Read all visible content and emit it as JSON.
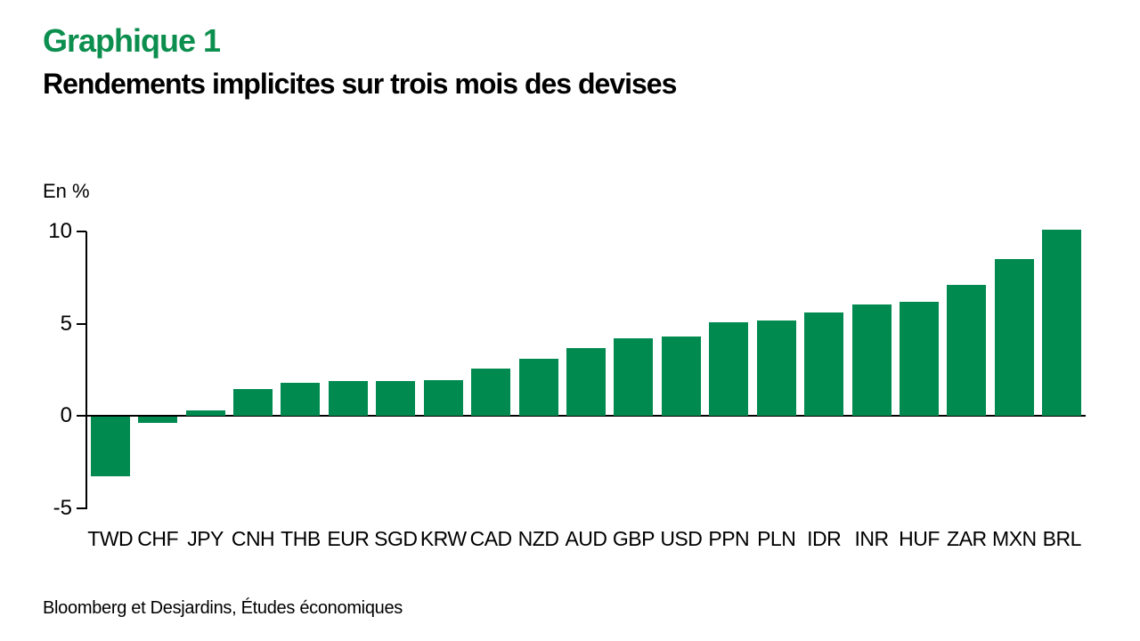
{
  "colors": {
    "bar_green": "#008A50",
    "title_green": "#0C8F4E",
    "text": "#000000",
    "background": "#FFFFFF"
  },
  "header": {
    "title": "Graphique 1",
    "subtitle": "Rendements implicites sur trois mois des devises"
  },
  "chart_data": {
    "type": "bar",
    "title": "Graphique 1",
    "subtitle": "Rendements implicites sur trois mois des devises",
    "ylabel": "En %",
    "xlabel": "",
    "categories": [
      "TWD",
      "CHF",
      "JPY",
      "CNH",
      "THB",
      "EUR",
      "SGD",
      "KRW",
      "CAD",
      "NZD",
      "AUD",
      "GBP",
      "USD",
      "PPN",
      "PLN",
      "IDR",
      "INR",
      "HUF",
      "ZAR",
      "MXN",
      "BRL"
    ],
    "values": [
      -3.2,
      -0.3,
      0.3,
      1.45,
      1.8,
      1.9,
      1.9,
      1.95,
      2.55,
      3.1,
      3.7,
      4.2,
      4.3,
      5.1,
      5.2,
      5.6,
      6.05,
      6.2,
      7.1,
      8.5,
      10.1
    ],
    "ylim": [
      -5,
      10
    ],
    "yticks": [
      10,
      5,
      0,
      -5
    ],
    "grid": false,
    "legend": "none",
    "source": "Bloomberg et Desjardins, Études économiques"
  }
}
